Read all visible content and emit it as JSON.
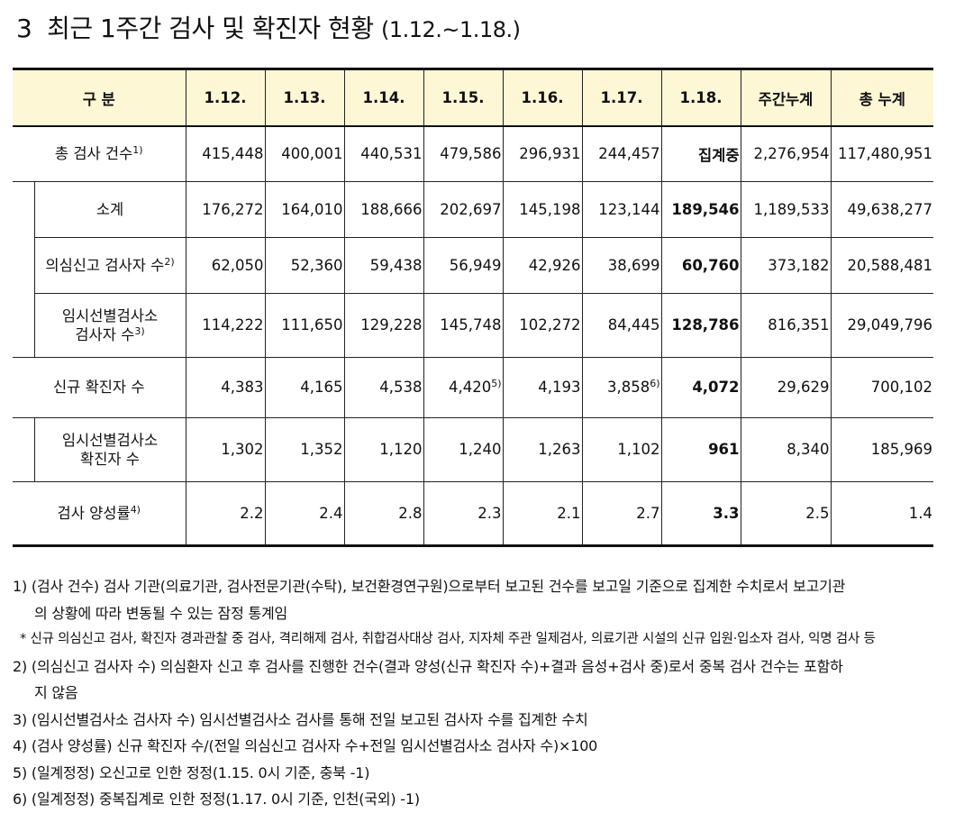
{
  "title": {
    "number": "3",
    "text": "최근 1주간 검사 및 확진자 현황",
    "range": "(1.12.~1.18.)"
  },
  "table": {
    "header": {
      "category": "구 분",
      "days": [
        "1.12.",
        "1.13.",
        "1.14.",
        "1.15.",
        "1.16.",
        "1.17.",
        "1.18."
      ],
      "weekly_total": "주간누계",
      "cumulative_total": "총 누계"
    },
    "rows": {
      "total_tests": {
        "label": "총 검사 건수",
        "sup": "1)",
        "values": [
          "415,448",
          "400,001",
          "440,531",
          "479,586",
          "296,931",
          "244,457",
          "집계중",
          "2,276,954",
          "117,480,951"
        ]
      },
      "subtotal": {
        "label": "소계",
        "values": [
          "176,272",
          "164,010",
          "188,666",
          "202,697",
          "145,198",
          "123,144",
          "189,546",
          "1,189,533",
          "49,638,277"
        ]
      },
      "suspected": {
        "label": "의심신고 검사자 수",
        "sup": "2)",
        "values": [
          "62,050",
          "52,360",
          "59,438",
          "56,949",
          "42,926",
          "38,699",
          "60,760",
          "373,182",
          "20,588,481"
        ]
      },
      "temp_testers": {
        "label_line1": "임시선별검사소",
        "label_line2": "검사자 수",
        "sup": "3)",
        "values": [
          "114,222",
          "111,650",
          "129,228",
          "145,748",
          "102,272",
          "84,445",
          "128,786",
          "816,351",
          "29,049,796"
        ]
      },
      "new_cases": {
        "label": "신규 확진자 수",
        "values": [
          "4,383",
          "4,165",
          "4,538",
          "4,420",
          "4,193",
          "3,858",
          "4,072",
          "29,629",
          "700,102"
        ],
        "sup_115": "5)",
        "sup_117": "6)"
      },
      "temp_cases": {
        "label_line1": "임시선별검사소",
        "label_line2": "확진자 수",
        "values": [
          "1,302",
          "1,352",
          "1,120",
          "1,240",
          "1,263",
          "1,102",
          "961",
          "8,340",
          "185,969"
        ]
      },
      "positivity": {
        "label": "검사 양성률",
        "sup": "4)",
        "values": [
          "2.2",
          "2.4",
          "2.8",
          "2.3",
          "2.1",
          "2.7",
          "3.3",
          "2.5",
          "1.4"
        ]
      }
    }
  },
  "notes": {
    "n1_line1": "1) (검사 건수) 검사 기관(의료기관, 검사전문기관(수탁), 보건환경연구원)으로부터 보고된 건수를 보고일 기준으로 집계한 수치로서 보고기관",
    "n1_line2": "의 상황에 따라 변동될 수 있는 잠정 통계임",
    "star": "*  신규 의심신고 검사, 확진자 경과관찰 중 검사, 격리해제 검사, 취합검사대상 검사, 지자체 주관 일제검사, 의료기관 시설의 신규 입원·입소자 검사, 익명 검사 등",
    "n2_line1": "2) (의심신고 검사자 수) 의심환자 신고 후 검사를 진행한 건수(결과 양성(신규 확진자 수)+결과 음성+검사 중)로서 중복 검사 건수는 포함하",
    "n2_line2": "지 않음",
    "n3": "3) (임시선별검사소 검사자 수) 임시선별검사소 검사를 통해 전일 보고된 검사자 수를 집계한 수치",
    "n4": "4) (검사 양성률) 신규 확진자 수/(전일 의심신고 검사자 수+전일 임시선별검사소 검사자 수)×100",
    "n5": "5) (일계정정) 오신고로 인한 정정(1.15. 0시 기준, 충북 -1)",
    "n6": "6) (일계정정) 중복집계로 인한 정정(1.17. 0시 기준, 인천(국외) -1)"
  }
}
